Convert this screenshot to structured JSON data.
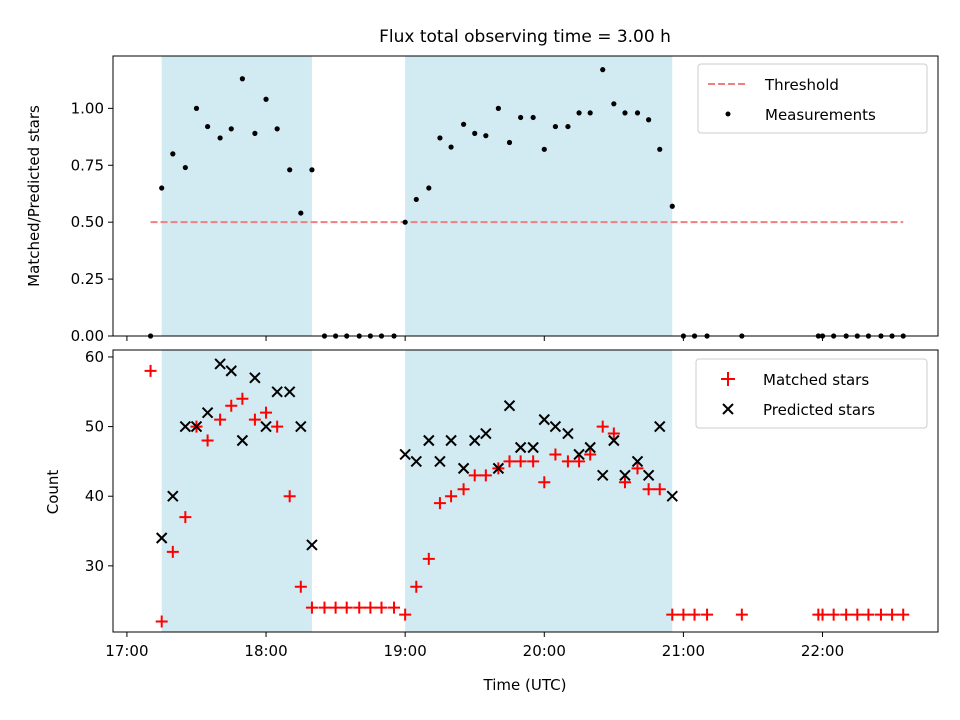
{
  "chart_data": {
    "title": "Flux total observing time = 3.00 h",
    "xlabel": "Time (UTC)",
    "x_unit": "hours (UTC, decimal)",
    "x_range": [
      16.9,
      22.83
    ],
    "x_ticks": [
      17,
      18,
      19,
      20,
      21,
      22
    ],
    "x_tick_labels": [
      "17:00",
      "18:00",
      "19:00",
      "20:00",
      "21:00",
      "22:00"
    ],
    "shaded_intervals": [
      [
        17.25,
        18.33
      ],
      [
        19.0,
        20.92
      ]
    ],
    "shade_color": "#add8e6",
    "top": {
      "type": "scatter",
      "ylabel": "Matched/Predicted stars",
      "ylim": [
        0,
        1.23
      ],
      "y_ticks": [
        0,
        0.25,
        0.5,
        0.75,
        1.0
      ],
      "y_tick_labels": [
        "0.00",
        "0.25",
        "0.50",
        "0.75",
        "1.00"
      ],
      "threshold": {
        "name": "Threshold",
        "value": 0.5,
        "x_range": [
          17.17,
          22.58
        ],
        "color": "#f08080"
      },
      "legend": [
        "Threshold",
        "Measurements"
      ],
      "measurements": {
        "name": "Measurements",
        "color": "#000000",
        "points": [
          [
            17.17,
            0.0
          ],
          [
            17.25,
            0.65
          ],
          [
            17.33,
            0.8
          ],
          [
            17.42,
            0.74
          ],
          [
            17.5,
            1.0
          ],
          [
            17.58,
            0.92
          ],
          [
            17.67,
            0.87
          ],
          [
            17.75,
            0.91
          ],
          [
            17.83,
            1.13
          ],
          [
            17.92,
            0.89
          ],
          [
            18.0,
            1.04
          ],
          [
            18.08,
            0.91
          ],
          [
            18.17,
            0.73
          ],
          [
            18.25,
            0.54
          ],
          [
            18.33,
            0.73
          ],
          [
            18.42,
            0.0
          ],
          [
            18.5,
            0.0
          ],
          [
            18.58,
            0.0
          ],
          [
            18.67,
            0.0
          ],
          [
            18.75,
            0.0
          ],
          [
            18.83,
            0.0
          ],
          [
            18.92,
            0.0
          ],
          [
            19.0,
            0.5
          ],
          [
            19.08,
            0.6
          ],
          [
            19.17,
            0.65
          ],
          [
            19.25,
            0.87
          ],
          [
            19.33,
            0.83
          ],
          [
            19.42,
            0.93
          ],
          [
            19.5,
            0.89
          ],
          [
            19.58,
            0.88
          ],
          [
            19.67,
            1.0
          ],
          [
            19.75,
            0.85
          ],
          [
            19.83,
            0.96
          ],
          [
            19.92,
            0.96
          ],
          [
            20.0,
            0.82
          ],
          [
            20.08,
            0.92
          ],
          [
            20.17,
            0.92
          ],
          [
            20.25,
            0.98
          ],
          [
            20.33,
            0.98
          ],
          [
            20.42,
            1.17
          ],
          [
            20.5,
            1.02
          ],
          [
            20.58,
            0.98
          ],
          [
            20.67,
            0.98
          ],
          [
            20.75,
            0.95
          ],
          [
            20.83,
            0.82
          ],
          [
            20.92,
            0.57
          ],
          [
            21.0,
            0.0
          ],
          [
            21.08,
            0.0
          ],
          [
            21.17,
            0.0
          ],
          [
            21.42,
            0.0
          ],
          [
            21.97,
            0.0
          ],
          [
            22.0,
            0.0
          ],
          [
            22.08,
            0.0
          ],
          [
            22.17,
            0.0
          ],
          [
            22.25,
            0.0
          ],
          [
            22.33,
            0.0
          ],
          [
            22.42,
            0.0
          ],
          [
            22.5,
            0.0
          ],
          [
            22.58,
            0.0
          ]
        ]
      }
    },
    "bottom": {
      "type": "scatter",
      "ylabel": "Count",
      "ylim": [
        20.5,
        61
      ],
      "y_ticks": [
        30,
        40,
        50,
        60
      ],
      "y_tick_labels": [
        "30",
        "40",
        "50",
        "60"
      ],
      "legend": [
        "Matched stars",
        "Predicted stars"
      ],
      "series": [
        {
          "name": "Matched stars",
          "marker": "plus",
          "color": "#ff0000",
          "points": [
            [
              17.17,
              58
            ],
            [
              17.25,
              22
            ],
            [
              17.33,
              32
            ],
            [
              17.42,
              37
            ],
            [
              17.5,
              50
            ],
            [
              17.58,
              48
            ],
            [
              17.67,
              51
            ],
            [
              17.75,
              53
            ],
            [
              17.83,
              54
            ],
            [
              17.92,
              51
            ],
            [
              18.0,
              52
            ],
            [
              18.08,
              50
            ],
            [
              18.17,
              40
            ],
            [
              18.25,
              27
            ],
            [
              18.33,
              24
            ],
            [
              18.42,
              24
            ],
            [
              18.5,
              24
            ],
            [
              18.58,
              24
            ],
            [
              18.67,
              24
            ],
            [
              18.75,
              24
            ],
            [
              18.83,
              24
            ],
            [
              18.92,
              24
            ],
            [
              19.0,
              23
            ],
            [
              19.08,
              27
            ],
            [
              19.17,
              31
            ],
            [
              19.25,
              39
            ],
            [
              19.33,
              40
            ],
            [
              19.42,
              41
            ],
            [
              19.5,
              43
            ],
            [
              19.58,
              43
            ],
            [
              19.67,
              44
            ],
            [
              19.75,
              45
            ],
            [
              19.83,
              45
            ],
            [
              19.92,
              45
            ],
            [
              20.0,
              42
            ],
            [
              20.08,
              46
            ],
            [
              20.17,
              45
            ],
            [
              20.25,
              45
            ],
            [
              20.33,
              46
            ],
            [
              20.42,
              50
            ],
            [
              20.5,
              49
            ],
            [
              20.58,
              42
            ],
            [
              20.67,
              44
            ],
            [
              20.75,
              41
            ],
            [
              20.83,
              41
            ],
            [
              20.92,
              23
            ],
            [
              21.0,
              23
            ],
            [
              21.08,
              23
            ],
            [
              21.17,
              23
            ],
            [
              21.42,
              23
            ],
            [
              21.97,
              23
            ],
            [
              22.0,
              23
            ],
            [
              22.08,
              23
            ],
            [
              22.17,
              23
            ],
            [
              22.25,
              23
            ],
            [
              22.33,
              23
            ],
            [
              22.42,
              23
            ],
            [
              22.5,
              23
            ],
            [
              22.58,
              23
            ]
          ]
        },
        {
          "name": "Predicted stars",
          "marker": "x",
          "color": "#000000",
          "points": [
            [
              17.25,
              34
            ],
            [
              17.33,
              40
            ],
            [
              17.42,
              50
            ],
            [
              17.5,
              50
            ],
            [
              17.58,
              52
            ],
            [
              17.67,
              59
            ],
            [
              17.75,
              58
            ],
            [
              17.83,
              48
            ],
            [
              17.92,
              57
            ],
            [
              18.0,
              50
            ],
            [
              18.08,
              55
            ],
            [
              18.17,
              55
            ],
            [
              18.25,
              50
            ],
            [
              18.33,
              33
            ],
            [
              19.0,
              46
            ],
            [
              19.08,
              45
            ],
            [
              19.17,
              48
            ],
            [
              19.25,
              45
            ],
            [
              19.33,
              48
            ],
            [
              19.42,
              44
            ],
            [
              19.5,
              48
            ],
            [
              19.58,
              49
            ],
            [
              19.67,
              44
            ],
            [
              19.75,
              53
            ],
            [
              19.83,
              47
            ],
            [
              19.92,
              47
            ],
            [
              20.0,
              51
            ],
            [
              20.08,
              50
            ],
            [
              20.17,
              49
            ],
            [
              20.25,
              46
            ],
            [
              20.33,
              47
            ],
            [
              20.42,
              43
            ],
            [
              20.5,
              48
            ],
            [
              20.58,
              43
            ],
            [
              20.67,
              45
            ],
            [
              20.75,
              43
            ],
            [
              20.83,
              50
            ],
            [
              20.92,
              40
            ]
          ]
        }
      ]
    }
  }
}
